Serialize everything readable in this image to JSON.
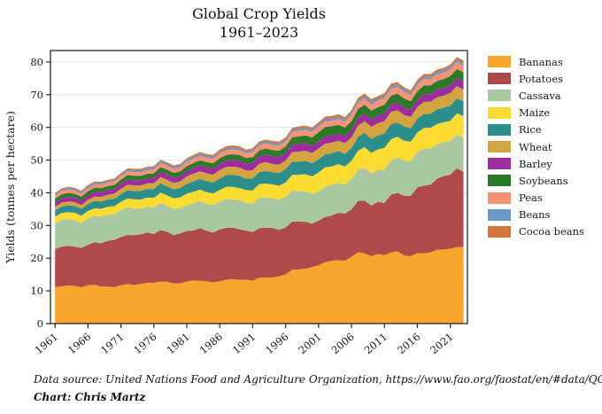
{
  "title": {
    "line1": "Global Crop Yields",
    "line2": "1961–2023"
  },
  "footer": {
    "source": "Data source: United Nations Food and Agriculture Organization, https://www.fao.org/faostat/en/#data/QCL",
    "credit": "Chart: Chris Martz"
  },
  "colors": {
    "text": "#1a1a1a",
    "spine": "#262626",
    "grid": "#e3e3e3",
    "background": "#ffffff"
  },
  "chart_data": {
    "type": "area",
    "stacked": true,
    "title": "Global Crop Yields 1961–2023",
    "xlabel": "",
    "ylabel": "Yields (tonnes per hectare)",
    "xlim": [
      1960.3,
      2023.6
    ],
    "ylim": [
      0,
      83.5
    ],
    "yticks": [
      0,
      10,
      20,
      30,
      40,
      50,
      60,
      70,
      80
    ],
    "xticks": [
      1961,
      1966,
      1971,
      1976,
      1981,
      1986,
      1991,
      1996,
      2001,
      2006,
      2011,
      2016,
      2021
    ],
    "grid": "horizontal-only",
    "legend_position": "right-outside",
    "x_start": 1961,
    "x_end": 2023,
    "anchor_years": [
      1961,
      1966,
      1971,
      1976,
      1981,
      1986,
      1991,
      1996,
      2001,
      2006,
      2011,
      2016,
      2021,
      2023
    ],
    "series": [
      {
        "name": "Bananas",
        "color": "#F7A52B",
        "values": [
          11.0,
          11.7,
          11.4,
          12.4,
          13.0,
          13.0,
          13.5,
          15.4,
          17.6,
          20.9,
          21.2,
          21.5,
          22.5,
          23.0
        ]
      },
      {
        "name": "Potatoes",
        "color": "#AE4A47",
        "values": [
          11.5,
          12.8,
          14.9,
          15.1,
          15.5,
          15.5,
          15.5,
          14.6,
          13.6,
          14.9,
          16.3,
          20.0,
          23.0,
          23.0
        ]
      },
      {
        "name": "Cassava",
        "color": "#A9C8A2",
        "values": [
          8.0,
          8.0,
          8.1,
          8.0,
          8.0,
          8.5,
          9.0,
          9.5,
          9.0,
          9.5,
          10.0,
          11.3,
          10.0,
          10.5
        ]
      },
      {
        "name": "Maize",
        "color": "#FBDB30",
        "values": [
          2.0,
          2.3,
          2.6,
          3.0,
          3.5,
          3.5,
          4.0,
          4.5,
          5.8,
          5.7,
          6.5,
          6.2,
          6.0,
          6.5
        ]
      },
      {
        "name": "Rice",
        "color": "#2B8E8A",
        "values": [
          1.9,
          2.1,
          2.4,
          2.7,
          3.0,
          3.5,
          3.7,
          4.0,
          4.0,
          4.0,
          4.5,
          4.2,
          4.5,
          4.5
        ]
      },
      {
        "name": "Wheat",
        "color": "#D4A43E",
        "values": [
          1.1,
          1.3,
          1.6,
          1.8,
          2.2,
          2.5,
          2.6,
          2.7,
          3.3,
          3.3,
          3.8,
          3.6,
          3.8,
          3.5
        ]
      },
      {
        "name": "Barley",
        "color": "#9D2C9F",
        "values": [
          1.3,
          1.4,
          1.5,
          1.6,
          1.7,
          1.9,
          2.2,
          2.3,
          2.2,
          2.2,
          2.3,
          2.3,
          2.4,
          2.5
        ]
      },
      {
        "name": "Soybeans",
        "color": "#2A7A2A",
        "values": [
          1.2,
          1.2,
          1.3,
          1.4,
          1.5,
          1.6,
          1.8,
          2.0,
          2.8,
          2.7,
          2.7,
          2.7,
          2.7,
          2.8
        ]
      },
      {
        "name": "Peas",
        "color": "#FB9272",
        "values": [
          1.0,
          1.0,
          1.1,
          1.2,
          1.3,
          1.4,
          1.5,
          1.6,
          1.7,
          1.8,
          2.0,
          2.0,
          2.0,
          2.0
        ]
      },
      {
        "name": "Beans",
        "color": "#6A97C8",
        "values": [
          0.4,
          0.5,
          0.5,
          0.6,
          0.6,
          0.6,
          0.6,
          0.6,
          0.7,
          0.7,
          0.7,
          0.7,
          0.7,
          0.7
        ]
      },
      {
        "name": "Cocoa beans",
        "color": "#D1763D",
        "values": [
          0.3,
          0.4,
          0.4,
          0.4,
          0.5,
          0.6,
          0.6,
          0.6,
          0.7,
          0.8,
          0.8,
          0.8,
          0.8,
          0.8
        ]
      }
    ],
    "jitter": {
      "global": 0.028,
      "series": 0.03
    }
  }
}
